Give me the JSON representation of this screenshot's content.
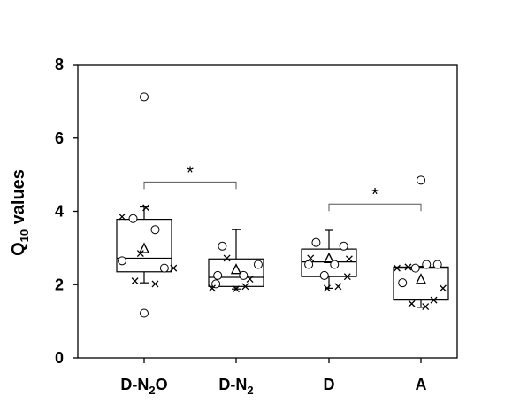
{
  "chart_data": {
    "type": "box",
    "title": "",
    "xlabel": "",
    "ylabel": {
      "main": "Q",
      "sub": "10",
      "rest": " values"
    },
    "ylim": [
      0,
      8
    ],
    "yticks": [
      "0",
      "2",
      "4",
      "6",
      "8"
    ],
    "categories": [
      {
        "main": "D-N",
        "sub": "2",
        "rest": "O"
      },
      {
        "main": "D-N",
        "sub": "2",
        "rest": ""
      },
      {
        "main": "D",
        "sub": "",
        "rest": ""
      },
      {
        "main": "A",
        "sub": "",
        "rest": ""
      }
    ],
    "boxes": [
      {
        "whisker_low": 2.05,
        "q1": 2.35,
        "median": 2.72,
        "q3": 3.78,
        "whisker_high": 4.12,
        "mean": 2.97
      },
      {
        "whisker_low": 1.88,
        "q1": 1.95,
        "median": 2.2,
        "q3": 2.7,
        "whisker_high": 3.5,
        "mean": 2.4
      },
      {
        "whisker_low": 1.9,
        "q1": 2.22,
        "median": 2.62,
        "q3": 2.97,
        "whisker_high": 3.48,
        "mean": 2.7
      },
      {
        "whisker_low": 1.38,
        "q1": 1.58,
        "median": 2.45,
        "q3": 2.48,
        "whisker_high": 2.5,
        "mean": 2.13
      }
    ],
    "outliers": [
      {
        "group": 0,
        "y": 7.12
      },
      {
        "group": 0,
        "y": 1.22
      },
      {
        "group": 3,
        "y": 4.85
      }
    ],
    "points_circle": [
      {
        "group": 0,
        "offset": -0.12,
        "y": 3.8
      },
      {
        "group": 0,
        "offset": 0.12,
        "y": 3.5
      },
      {
        "group": 0,
        "offset": -0.24,
        "y": 2.65
      },
      {
        "group": 0,
        "offset": 0.22,
        "y": 2.45
      },
      {
        "group": 1,
        "offset": -0.15,
        "y": 3.05
      },
      {
        "group": 1,
        "offset": 0.24,
        "y": 2.55
      },
      {
        "group": 1,
        "offset": -0.2,
        "y": 2.25
      },
      {
        "group": 1,
        "offset": 0.08,
        "y": 2.25
      },
      {
        "group": 1,
        "offset": -0.22,
        "y": 2.02
      },
      {
        "group": 2,
        "offset": -0.14,
        "y": 3.15
      },
      {
        "group": 2,
        "offset": 0.16,
        "y": 3.05
      },
      {
        "group": 2,
        "offset": -0.22,
        "y": 2.55
      },
      {
        "group": 2,
        "offset": 0.06,
        "y": 2.55
      },
      {
        "group": 2,
        "offset": -0.05,
        "y": 2.25
      },
      {
        "group": 3,
        "offset": 0.06,
        "y": 2.55
      },
      {
        "group": 3,
        "offset": 0.18,
        "y": 2.55
      },
      {
        "group": 3,
        "offset": -0.2,
        "y": 2.05
      },
      {
        "group": 3,
        "offset": -0.06,
        "y": 2.45
      }
    ],
    "points_cross": [
      {
        "group": 0,
        "offset": -0.24,
        "y": 3.85
      },
      {
        "group": 0,
        "offset": 0.02,
        "y": 4.1
      },
      {
        "group": 0,
        "offset": -0.04,
        "y": 2.85
      },
      {
        "group": 0,
        "offset": -0.1,
        "y": 2.1
      },
      {
        "group": 0,
        "offset": 0.12,
        "y": 2.02
      },
      {
        "group": 0,
        "offset": 0.32,
        "y": 2.45
      },
      {
        "group": 1,
        "offset": -0.26,
        "y": 1.9
      },
      {
        "group": 1,
        "offset": -0.1,
        "y": 2.72
      },
      {
        "group": 1,
        "offset": 0.0,
        "y": 1.88
      },
      {
        "group": 1,
        "offset": 0.15,
        "y": 2.15
      },
      {
        "group": 1,
        "offset": 0.1,
        "y": 1.95
      },
      {
        "group": 2,
        "offset": -0.2,
        "y": 2.72
      },
      {
        "group": 2,
        "offset": -0.02,
        "y": 1.9
      },
      {
        "group": 2,
        "offset": 0.1,
        "y": 1.95
      },
      {
        "group": 2,
        "offset": 0.2,
        "y": 2.22
      },
      {
        "group": 2,
        "offset": 0.22,
        "y": 2.7
      },
      {
        "group": 3,
        "offset": -0.26,
        "y": 2.45
      },
      {
        "group": 3,
        "offset": -0.14,
        "y": 2.48
      },
      {
        "group": 3,
        "offset": -0.1,
        "y": 1.48
      },
      {
        "group": 3,
        "offset": 0.05,
        "y": 1.4
      },
      {
        "group": 3,
        "offset": 0.14,
        "y": 1.58
      },
      {
        "group": 3,
        "offset": 0.24,
        "y": 1.9
      }
    ],
    "significance": [
      {
        "from": 0,
        "to": 1,
        "y": 4.8,
        "label": "*"
      },
      {
        "from": 2,
        "to": 3,
        "y": 4.2,
        "label": "*"
      }
    ],
    "grid": false,
    "legend": "none"
  }
}
